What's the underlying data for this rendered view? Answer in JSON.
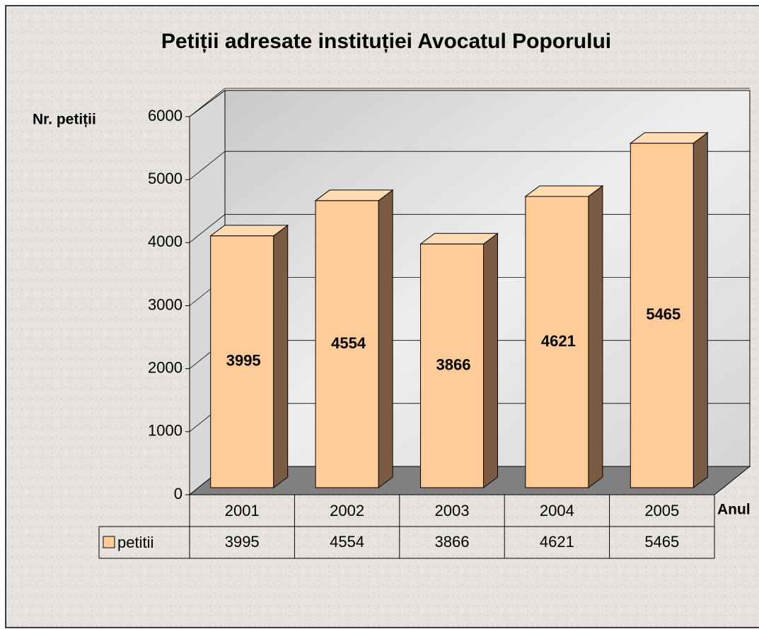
{
  "chart_data": {
    "type": "bar3d",
    "title": "Petiții adresate instituției Avocatul Poporului",
    "y_label": "Nr. petiții",
    "x_label": "Anul",
    "categories": [
      "2001",
      "2002",
      "2003",
      "2004",
      "2005"
    ],
    "series": [
      {
        "name": "petitii",
        "color": "#ffcc99",
        "values": [
          3995,
          4554,
          3866,
          4621,
          5465
        ]
      }
    ],
    "ylim": [
      0,
      6000
    ],
    "yticks": [
      0,
      1000,
      2000,
      3000,
      4000,
      5000,
      6000
    ],
    "grid": true,
    "data_table": true
  }
}
